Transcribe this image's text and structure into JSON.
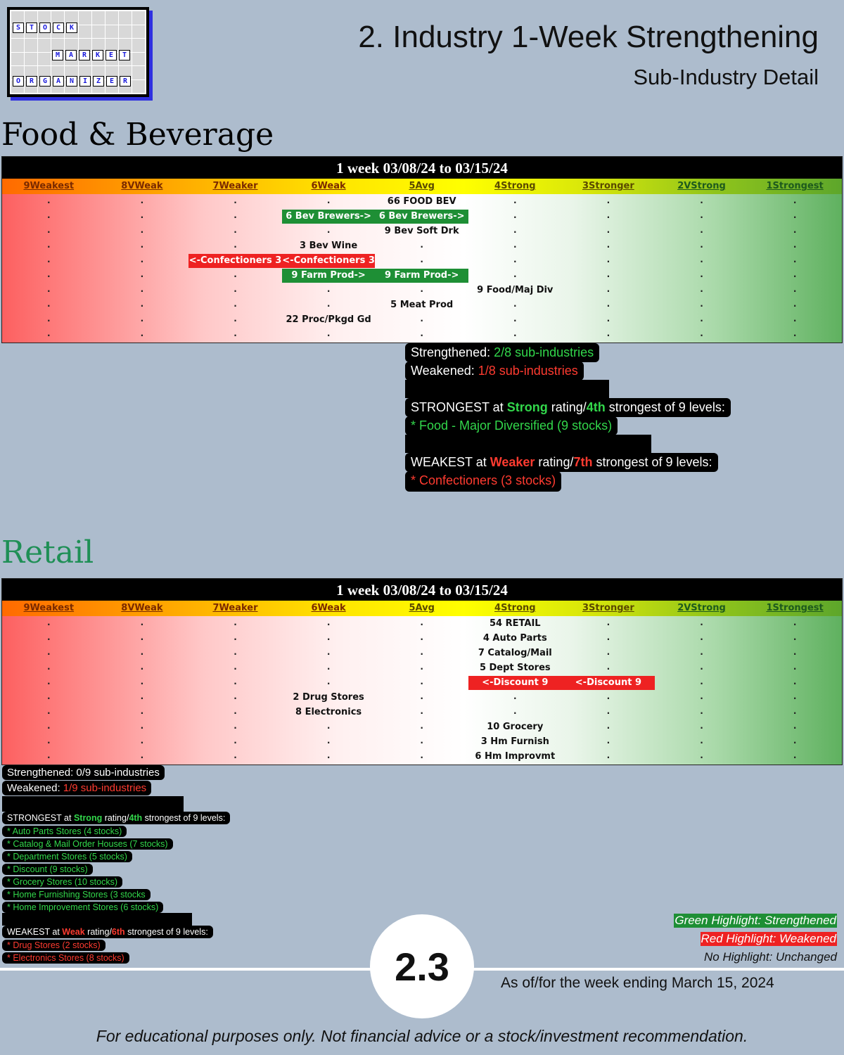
{
  "logo": {
    "word1": "STOCK",
    "word2": "MARKET",
    "word3": "ORGANIZER"
  },
  "header": {
    "title": "2. Industry 1-Week Strengthening",
    "subtitle": "Sub-Industry Detail"
  },
  "levels": [
    "9Weakest",
    "8VWeak",
    "7Weaker",
    "6Weak",
    "5Avg",
    "4Strong",
    "3Stronger",
    "2VStrong",
    "1Strongest"
  ],
  "colors": {
    "strengthened": "#1e8f35",
    "weakened": "#ee2222",
    "background": "#adbccd"
  },
  "food": {
    "section_title": "Food & Beverage",
    "table_header": "1 week 03/08/24 to 03/15/24",
    "rows": [
      {
        "cells": [
          {
            "col": 4,
            "text": "66 FOOD BEV"
          }
        ]
      },
      {
        "cells": [
          {
            "col": 3,
            "text": "6 Bev Brewers->",
            "hl": "g"
          },
          {
            "col": 4,
            "text": "6 Bev Brewers->",
            "hl": "g"
          }
        ]
      },
      {
        "cells": [
          {
            "col": 4,
            "text": "9 Bev Soft Drk"
          }
        ]
      },
      {
        "cells": [
          {
            "col": 3,
            "text": "3 Bev Wine"
          }
        ]
      },
      {
        "cells": [
          {
            "col": 2,
            "text": "<-Confectioners 3",
            "hl": "r"
          },
          {
            "col": 3,
            "text": "<-Confectioners 3",
            "hl": "r"
          }
        ]
      },
      {
        "cells": [
          {
            "col": 3,
            "text": "9 Farm Prod->",
            "hl": "g"
          },
          {
            "col": 4,
            "text": "9 Farm Prod->",
            "hl": "g"
          }
        ]
      },
      {
        "cells": [
          {
            "col": 5,
            "text": "9 Food/Maj Div"
          }
        ]
      },
      {
        "cells": [
          {
            "col": 4,
            "text": "5 Meat Prod"
          }
        ]
      },
      {
        "cells": [
          {
            "col": 3,
            "text": "22 Proc/Pkgd Gd"
          }
        ]
      },
      {
        "cells": []
      }
    ],
    "summary": {
      "strengthened_label": "Strengthened: ",
      "strengthened_value": "2/8 sub-industries",
      "weakened_label": "Weakened: ",
      "weakened_value": "1/8 sub-industries",
      "strongest_prefix": "STRONGEST at ",
      "strongest_rating": "Strong",
      "strongest_mid": " rating/",
      "strongest_rank": "4th",
      "strongest_suffix": " strongest of 9 levels:",
      "strongest_items": [
        "* Food - Major Diversified (9 stocks)"
      ],
      "weakest_prefix": "WEAKEST at ",
      "weakest_rating": "Weaker",
      "weakest_mid": " rating/",
      "weakest_rank": "7th",
      "weakest_suffix": " strongest of 9 levels:",
      "weakest_items": [
        "* Confectioners (3 stocks)"
      ]
    }
  },
  "retail": {
    "section_title": "Retail",
    "table_header": "1 week 03/08/24 to 03/15/24",
    "rows": [
      {
        "cells": [
          {
            "col": 5,
            "text": "54 RETAIL"
          }
        ]
      },
      {
        "cells": [
          {
            "col": 5,
            "text": "4 Auto Parts"
          }
        ]
      },
      {
        "cells": [
          {
            "col": 5,
            "text": "7 Catalog/Mail"
          }
        ]
      },
      {
        "cells": [
          {
            "col": 5,
            "text": "5 Dept Stores"
          }
        ]
      },
      {
        "cells": [
          {
            "col": 5,
            "text": "<-Discount 9",
            "hl": "r"
          },
          {
            "col": 6,
            "text": "<-Discount 9",
            "hl": "r"
          }
        ]
      },
      {
        "cells": [
          {
            "col": 3,
            "text": "2 Drug Stores"
          }
        ]
      },
      {
        "cells": [
          {
            "col": 3,
            "text": "8 Electronics"
          }
        ]
      },
      {
        "cells": [
          {
            "col": 5,
            "text": "10 Grocery"
          }
        ]
      },
      {
        "cells": [
          {
            "col": 5,
            "text": "3 Hm Furnish"
          }
        ]
      },
      {
        "cells": [
          {
            "col": 5,
            "text": "6 Hm Improvmt"
          }
        ]
      }
    ],
    "summary": {
      "strengthened_label": "Strengthened: ",
      "strengthened_value": "0/9 sub-industries",
      "weakened_label": "Weakened: ",
      "weakened_value": "1/9 sub-industries",
      "strongest_prefix": "STRONGEST at ",
      "strongest_rating": "Strong",
      "strongest_mid": " rating/",
      "strongest_rank": "4th",
      "strongest_suffix": " strongest of 9 levels:",
      "strongest_items": [
        "* Auto Parts Stores (4 stocks)",
        "* Catalog & Mail Order Houses (7 stocks)",
        "* Department Stores (5 stocks)",
        "* Discount (9 stocks)",
        "* Grocery Stores (10 stocks)",
        "* Home Furnishing Stores (3 stocks",
        "* Home Improvement Stores (6 stocks)"
      ],
      "weakest_prefix": "WEAKEST at ",
      "weakest_rating": "Weak",
      "weakest_mid": " rating/",
      "weakest_rank": "6th",
      "weakest_suffix": " strongest of 9 levels:",
      "weakest_items": [
        "* Drug Stores (2 stocks)",
        "* Electronics Stores (8 stocks)"
      ]
    }
  },
  "legend": {
    "green": "Green Highlight: Strengthened",
    "red": "Red Highlight: Weakened",
    "none": "No Highlight: Unchanged"
  },
  "badge": "2.3",
  "as_of": "As of/for the week ending March 15, 2024",
  "disclaimer": "For educational purposes only. Not financial advice or a stock/investment recommendation."
}
